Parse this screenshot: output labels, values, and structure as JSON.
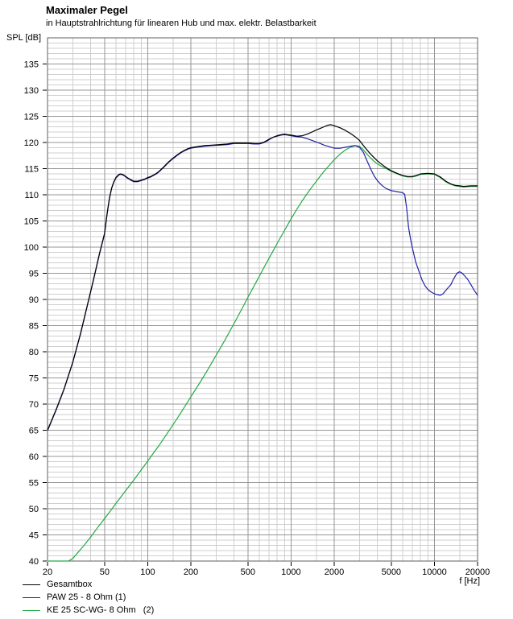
{
  "header": {
    "title": "Maximaler Pegel",
    "subtitle": "in Hauptstrahlrichtung für linearen Hub und max. elektr. Belastbarkeit"
  },
  "axes": {
    "y_label": "SPL [dB]",
    "x_label": "f [Hz]"
  },
  "legend": {
    "items": [
      {
        "label": "Gesamtbox",
        "color": "#000000"
      },
      {
        "label": "PAW 25 - 8 Ohm (1)",
        "color": "#2222aa"
      },
      {
        "label": "KE 25 SC-WG- 8 Ohm   (2)",
        "color": "#22aa44"
      }
    ]
  },
  "chart_data": {
    "type": "line",
    "title": "Maximaler Pegel",
    "subtitle": "in Hauptstrahlrichtung für linearen Hub und max. elektr. Belastbarkeit",
    "xlabel": "f [Hz]",
    "ylabel": "SPL [dB]",
    "x_scale": "log",
    "x_range": [
      20,
      20000
    ],
    "y_range": [
      40,
      140
    ],
    "x_ticks": [
      20,
      50,
      100,
      200,
      500,
      1000,
      2000,
      5000,
      10000,
      20000
    ],
    "x_minor_gridlines": [
      30,
      40,
      60,
      70,
      80,
      90,
      150,
      300,
      400,
      600,
      700,
      800,
      900,
      1500,
      3000,
      4000,
      6000,
      7000,
      8000,
      9000,
      15000
    ],
    "y_ticks": [
      40,
      45,
      50,
      55,
      60,
      65,
      70,
      75,
      80,
      85,
      90,
      95,
      100,
      105,
      110,
      115,
      120,
      125,
      130,
      135
    ],
    "y_minor_step": 1,
    "grid": {
      "minor_color": "#cfcfcf",
      "major_color": "#969696",
      "frame_color": "#5f5f5f"
    },
    "legend_position": "bottom-left",
    "series": [
      {
        "name": "Gesamtbox",
        "color": "#000000",
        "points": [
          [
            20,
            65
          ],
          [
            23,
            69
          ],
          [
            26,
            72.8
          ],
          [
            30,
            78
          ],
          [
            34,
            83.5
          ],
          [
            38,
            89
          ],
          [
            42,
            94
          ],
          [
            46,
            98.7
          ],
          [
            50,
            102.6
          ],
          [
            52,
            106.3
          ],
          [
            54,
            109.3
          ],
          [
            56,
            111.3
          ],
          [
            58,
            112.5
          ],
          [
            60,
            113.3
          ],
          [
            63,
            113.9
          ],
          [
            65,
            114
          ],
          [
            68,
            113.8
          ],
          [
            72,
            113.3
          ],
          [
            76,
            112.9
          ],
          [
            80,
            112.6
          ],
          [
            85,
            112.6
          ],
          [
            90,
            112.8
          ],
          [
            95,
            113
          ],
          [
            100,
            113.3
          ],
          [
            105,
            113.5
          ],
          [
            110,
            113.8
          ],
          [
            115,
            114.1
          ],
          [
            120,
            114.5
          ],
          [
            130,
            115.4
          ],
          [
            140,
            116.3
          ],
          [
            150,
            117
          ],
          [
            160,
            117.6
          ],
          [
            170,
            118.1
          ],
          [
            180,
            118.5
          ],
          [
            190,
            118.8
          ],
          [
            200,
            119
          ],
          [
            220,
            119.2
          ],
          [
            250,
            119.4
          ],
          [
            280,
            119.5
          ],
          [
            320,
            119.6
          ],
          [
            360,
            119.7
          ],
          [
            400,
            119.9
          ],
          [
            450,
            119.9
          ],
          [
            500,
            119.9
          ],
          [
            550,
            119.8
          ],
          [
            600,
            119.8
          ],
          [
            650,
            120.1
          ],
          [
            700,
            120.6
          ],
          [
            750,
            121
          ],
          [
            800,
            121.3
          ],
          [
            850,
            121.5
          ],
          [
            900,
            121.6
          ],
          [
            950,
            121.5
          ],
          [
            1000,
            121.4
          ],
          [
            1100,
            121.2
          ],
          [
            1200,
            121.3
          ],
          [
            1300,
            121.6
          ],
          [
            1400,
            122
          ],
          [
            1500,
            122.4
          ],
          [
            1600,
            122.7
          ],
          [
            1700,
            123
          ],
          [
            1800,
            123.3
          ],
          [
            1900,
            123.4
          ],
          [
            2000,
            123.2
          ],
          [
            2200,
            122.8
          ],
          [
            2400,
            122.3
          ],
          [
            2600,
            121.7
          ],
          [
            2800,
            121.1
          ],
          [
            3000,
            120.4
          ],
          [
            3200,
            119.4
          ],
          [
            3500,
            118.1
          ],
          [
            3800,
            117.1
          ],
          [
            4000,
            116.5
          ],
          [
            4300,
            115.8
          ],
          [
            4600,
            115.2
          ],
          [
            5000,
            114.6
          ],
          [
            5500,
            114.1
          ],
          [
            6000,
            113.7
          ],
          [
            6500,
            113.5
          ],
          [
            7000,
            113.5
          ],
          [
            7500,
            113.7
          ],
          [
            8000,
            114
          ],
          [
            9000,
            114.1
          ],
          [
            10000,
            114
          ],
          [
            11000,
            113.4
          ],
          [
            12000,
            112.6
          ],
          [
            13000,
            112.1
          ],
          [
            14000,
            111.8
          ],
          [
            15000,
            111.7
          ],
          [
            16000,
            111.6
          ],
          [
            18000,
            111.7
          ],
          [
            20000,
            111.7
          ]
        ]
      },
      {
        "name": "PAW 25 - 8 Ohm (1)",
        "color": "#2222aa",
        "points": [
          [
            20,
            64.9
          ],
          [
            23,
            68.9
          ],
          [
            26,
            72.7
          ],
          [
            30,
            77.9
          ],
          [
            34,
            83.4
          ],
          [
            38,
            88.9
          ],
          [
            42,
            93.9
          ],
          [
            46,
            98.6
          ],
          [
            50,
            102.5
          ],
          [
            52,
            106.2
          ],
          [
            54,
            109.2
          ],
          [
            56,
            111.2
          ],
          [
            58,
            112.4
          ],
          [
            60,
            113.2
          ],
          [
            63,
            113.8
          ],
          [
            65,
            113.9
          ],
          [
            68,
            113.7
          ],
          [
            72,
            113.2
          ],
          [
            76,
            112.8
          ],
          [
            80,
            112.5
          ],
          [
            85,
            112.5
          ],
          [
            90,
            112.7
          ],
          [
            95,
            112.9
          ],
          [
            100,
            113.2
          ],
          [
            105,
            113.4
          ],
          [
            110,
            113.7
          ],
          [
            115,
            114
          ],
          [
            120,
            114.4
          ],
          [
            130,
            115.3
          ],
          [
            140,
            116.2
          ],
          [
            150,
            116.9
          ],
          [
            160,
            117.5
          ],
          [
            170,
            118
          ],
          [
            180,
            118.4
          ],
          [
            190,
            118.7
          ],
          [
            200,
            118.9
          ],
          [
            220,
            119.1
          ],
          [
            250,
            119.3
          ],
          [
            280,
            119.4
          ],
          [
            320,
            119.5
          ],
          [
            360,
            119.6
          ],
          [
            400,
            119.8
          ],
          [
            450,
            119.8
          ],
          [
            500,
            119.8
          ],
          [
            550,
            119.7
          ],
          [
            600,
            119.7
          ],
          [
            650,
            120
          ],
          [
            700,
            120.5
          ],
          [
            750,
            121
          ],
          [
            800,
            121.2
          ],
          [
            850,
            121.4
          ],
          [
            900,
            121.5
          ],
          [
            950,
            121.4
          ],
          [
            1000,
            121.3
          ],
          [
            1100,
            121.1
          ],
          [
            1200,
            121
          ],
          [
            1300,
            120.7
          ],
          [
            1400,
            120.4
          ],
          [
            1500,
            120.1
          ],
          [
            1600,
            119.8
          ],
          [
            1700,
            119.5
          ],
          [
            1800,
            119.3
          ],
          [
            1900,
            119.1
          ],
          [
            2000,
            118.9
          ],
          [
            2100,
            118.9
          ],
          [
            2200,
            118.9
          ],
          [
            2400,
            119.1
          ],
          [
            2600,
            119.3
          ],
          [
            2800,
            119.4
          ],
          [
            3000,
            119.1
          ],
          [
            3200,
            118.1
          ],
          [
            3400,
            116.4
          ],
          [
            3600,
            114.9
          ],
          [
            3800,
            113.6
          ],
          [
            4000,
            112.7
          ],
          [
            4300,
            111.8
          ],
          [
            4600,
            111.2
          ],
          [
            5000,
            110.8
          ],
          [
            5500,
            110.6
          ],
          [
            6000,
            110.4
          ],
          [
            6200,
            110.1
          ],
          [
            6400,
            107.5
          ],
          [
            6600,
            103.8
          ],
          [
            6800,
            101.7
          ],
          [
            7000,
            100
          ],
          [
            7400,
            97.2
          ],
          [
            7800,
            95.4
          ],
          [
            8200,
            93.7
          ],
          [
            8600,
            92.6
          ],
          [
            9000,
            91.9
          ],
          [
            9500,
            91.4
          ],
          [
            10000,
            91.1
          ],
          [
            10500,
            90.9
          ],
          [
            11000,
            90.8
          ],
          [
            11500,
            91.1
          ],
          [
            12000,
            91.7
          ],
          [
            12500,
            92.3
          ],
          [
            13000,
            92.8
          ],
          [
            13500,
            93.7
          ],
          [
            14000,
            94.5
          ],
          [
            14500,
            95.1
          ],
          [
            15000,
            95.3
          ],
          [
            15500,
            95.1
          ],
          [
            16000,
            94.7
          ],
          [
            17000,
            93.9
          ],
          [
            18000,
            92.8
          ],
          [
            19000,
            91.7
          ],
          [
            20000,
            90.8
          ]
        ]
      },
      {
        "name": "KE 25 SC-WG- 8 Ohm (2)",
        "color": "#22aa44",
        "points": [
          [
            20,
            40
          ],
          [
            28,
            40
          ],
          [
            30,
            40.5
          ],
          [
            33,
            41.8
          ],
          [
            36,
            43
          ],
          [
            40,
            44.6
          ],
          [
            45,
            46.5
          ],
          [
            50,
            48.1
          ],
          [
            55,
            49.6
          ],
          [
            60,
            51
          ],
          [
            70,
            53.4
          ],
          [
            80,
            55.5
          ],
          [
            90,
            57.4
          ],
          [
            100,
            59.1
          ],
          [
            110,
            60.7
          ],
          [
            120,
            62.1
          ],
          [
            140,
            64.8
          ],
          [
            160,
            67.2
          ],
          [
            180,
            69.4
          ],
          [
            200,
            71.4
          ],
          [
            230,
            74
          ],
          [
            260,
            76.4
          ],
          [
            300,
            79.3
          ],
          [
            350,
            82.5
          ],
          [
            400,
            85.4
          ],
          [
            450,
            88
          ],
          [
            500,
            90.4
          ],
          [
            550,
            92.5
          ],
          [
            600,
            94.4
          ],
          [
            650,
            96.2
          ],
          [
            700,
            97.8
          ],
          [
            750,
            99.3
          ],
          [
            800,
            100.7
          ],
          [
            850,
            102
          ],
          [
            900,
            103.2
          ],
          [
            1000,
            105.4
          ],
          [
            1100,
            107.3
          ],
          [
            1200,
            108.9
          ],
          [
            1300,
            110.3
          ],
          [
            1400,
            111.5
          ],
          [
            1500,
            112.6
          ],
          [
            1600,
            113.6
          ],
          [
            1700,
            114.5
          ],
          [
            1800,
            115.3
          ],
          [
            1900,
            116
          ],
          [
            2000,
            116.7
          ],
          [
            2200,
            117.8
          ],
          [
            2400,
            118.6
          ],
          [
            2600,
            119.1
          ],
          [
            2800,
            119.4
          ],
          [
            3000,
            119.3
          ],
          [
            3200,
            118.6
          ],
          [
            3400,
            117.7
          ],
          [
            3600,
            117
          ],
          [
            3800,
            116.4
          ],
          [
            4000,
            115.9
          ],
          [
            4300,
            115.4
          ],
          [
            4600,
            115
          ],
          [
            5000,
            114.5
          ],
          [
            5500,
            114
          ],
          [
            6000,
            113.6
          ],
          [
            6500,
            113.4
          ],
          [
            7000,
            113.4
          ],
          [
            7500,
            113.6
          ],
          [
            8000,
            113.9
          ],
          [
            9000,
            114
          ],
          [
            10000,
            113.9
          ],
          [
            11000,
            113.3
          ],
          [
            12000,
            112.5
          ],
          [
            13000,
            112
          ],
          [
            14000,
            111.7
          ],
          [
            15000,
            111.6
          ],
          [
            16000,
            111.5
          ],
          [
            18000,
            111.6
          ],
          [
            20000,
            111.6
          ]
        ]
      }
    ]
  }
}
